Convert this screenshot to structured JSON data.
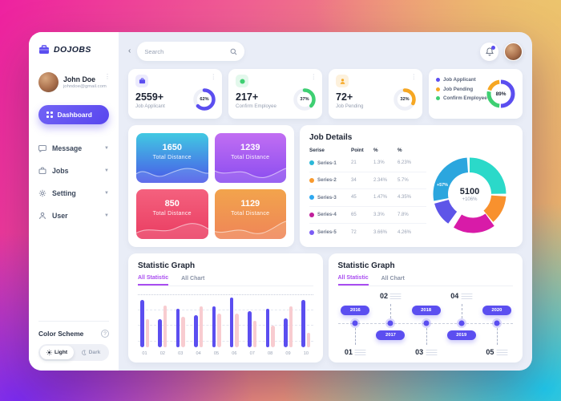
{
  "sidebar": {
    "logo_text": "DOJOBS",
    "collapse_icon": "‹",
    "profile": {
      "name": "John Doe",
      "email": "johndoe@gmail.com"
    },
    "dashboard_button": "Dashboard",
    "menu": [
      {
        "label": "Message",
        "icon": "chat-icon"
      },
      {
        "label": "Jobs",
        "icon": "briefcase-icon"
      },
      {
        "label": "Setting",
        "icon": "gear-icon"
      },
      {
        "label": "User",
        "icon": "person-icon"
      }
    ],
    "color_scheme": {
      "label": "Color Scheme",
      "help": "?",
      "light": "Light",
      "dark": "Dark",
      "active": "Light"
    }
  },
  "topbar": {
    "search_placeholder": "Search"
  },
  "stats_cards": [
    {
      "value": "2559+",
      "label": "Job Applicant",
      "percent": 62,
      "percent_label": "62%",
      "color": "#5b4ef0",
      "chip_bg": "#ecebfd"
    },
    {
      "value": "217+",
      "label": "Confirm Employee",
      "percent": 37,
      "percent_label": "37%",
      "color": "#3ecf72",
      "chip_bg": "#e3f8ec"
    },
    {
      "value": "72+",
      "label": "Job Pending",
      "percent": 32,
      "percent_label": "32%",
      "color": "#f6a723",
      "chip_bg": "#fdf1dc"
    }
  ],
  "job_summary": {
    "legend": [
      {
        "label": "Job Applicant",
        "color": "#5b4ef0"
      },
      {
        "label": "Job Pending",
        "color": "#f6a723"
      },
      {
        "label": "Confirm Employee",
        "color": "#3ecf72"
      }
    ],
    "percent_label": "89%",
    "ring_segments": [
      {
        "color": "#5b4ef0",
        "fraction": 0.52
      },
      {
        "color": "#3ecf72",
        "fraction": 0.28
      },
      {
        "color": "#f6a723",
        "fraction": 0.2
      }
    ]
  },
  "distance_cards": [
    {
      "value": "1650",
      "label": "Total Distance",
      "gradient_top": "#41c9e2",
      "gradient_bottom": "#4a58e8"
    },
    {
      "value": "1239",
      "label": "Total Distance",
      "gradient_top": "#c16ef2",
      "gradient_bottom": "#8a4df0"
    },
    {
      "value": "850",
      "label": "Total Distance",
      "gradient_top": "#f4617e",
      "gradient_bottom": "#ea3d62"
    },
    {
      "value": "1129",
      "label": "Total Distance",
      "gradient_top": "#f2a44c",
      "gradient_bottom": "#ef8558"
    }
  ],
  "job_details": {
    "title": "Job Details",
    "headers": [
      "Serise",
      "Point",
      "%",
      "%"
    ],
    "rows": [
      {
        "name": "Series-1",
        "color": "#2bb8d8",
        "point": "21",
        "pct1": "1.3%",
        "pct2": "6.23%"
      },
      {
        "name": "Series-2",
        "color": "#f89a2e",
        "point": "34",
        "pct1": "2.34%",
        "pct2": "5.7%"
      },
      {
        "name": "Series-3",
        "color": "#2ea8f0",
        "point": "45",
        "pct1": "1.47%",
        "pct2": "4.35%"
      },
      {
        "name": "Series-4",
        "color": "#c01e9a",
        "point": "65",
        "pct1": "3.3%",
        "pct2": "7.8%"
      },
      {
        "name": "Series-5",
        "color": "#7b5cf5",
        "point": "72",
        "pct1": "3.66%",
        "pct2": "4.26%"
      }
    ],
    "donut": {
      "center_value": "5100",
      "center_sub": "+106%",
      "callout": "+57%",
      "segments": [
        {
          "color": "#2bd9c9",
          "fraction": 0.26
        },
        {
          "color": "#f8912e",
          "fraction": 0.14
        },
        {
          "color": "#d81ba8",
          "fraction": 0.2,
          "explode": true
        },
        {
          "color": "#5e55e8",
          "fraction": 0.12
        },
        {
          "color": "#2ba6de",
          "fraction": 0.28
        }
      ]
    }
  },
  "bar_graph": {
    "title": "Statistic Graph",
    "tabs": [
      {
        "label": "All Statistic"
      },
      {
        "label": "All Chart"
      }
    ],
    "chart_data": {
      "type": "bar",
      "categories": [
        "01",
        "02",
        "03",
        "04",
        "05",
        "06",
        "07",
        "08",
        "09",
        "10"
      ],
      "series": [
        {
          "name": "primary",
          "color": "#5b4ef0",
          "values": [
            92,
            55,
            75,
            62,
            80,
            97,
            70,
            75,
            57,
            92
          ]
        },
        {
          "name": "secondary",
          "color": "#f8ccd0",
          "values": [
            55,
            82,
            60,
            80,
            65,
            65,
            52,
            42,
            80,
            28
          ]
        }
      ],
      "ylim": [
        0,
        100
      ],
      "grid": "dashed"
    }
  },
  "timeline_graph": {
    "title": "Statistic Graph",
    "tabs": [
      {
        "label": "All Statistic"
      },
      {
        "label": "All Chart"
      }
    ],
    "items": [
      {
        "number": "01",
        "year": "2016",
        "year_position": "above",
        "number_position": "below"
      },
      {
        "number": "02",
        "year": "2017",
        "year_position": "below",
        "number_position": "above"
      },
      {
        "number": "03",
        "year": "2018",
        "year_position": "above",
        "number_position": "below"
      },
      {
        "number": "04",
        "year": "2019",
        "year_position": "below",
        "number_position": "above"
      },
      {
        "number": "05",
        "year": "2020",
        "year_position": "above",
        "number_position": "below"
      }
    ]
  }
}
